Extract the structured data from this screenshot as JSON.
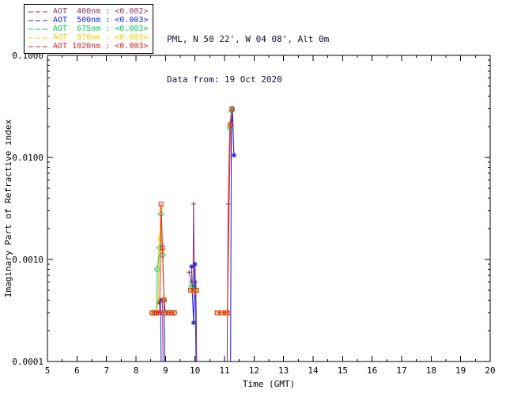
{
  "header": {
    "site_line": "PML, N 50 22', W 04 08', Alt 0m",
    "date_line": "Data from: 19 Oct 2020"
  },
  "chart_data": {
    "type": "line",
    "title": "",
    "xlabel": "Time (GMT)",
    "ylabel": "Imaginary Part of Refractive index",
    "xlim": [
      5,
      20
    ],
    "ylim": [
      0.0001,
      0.1
    ],
    "yscale": "log",
    "grid": false,
    "legend_position": "outside-top-left",
    "x_tick_labels": [
      "5",
      "6",
      "7",
      "8",
      "9",
      "10",
      "11",
      "12",
      "13",
      "14",
      "15",
      "16",
      "17",
      "18",
      "19",
      "20"
    ],
    "y_tick_labels": [
      "0.0001",
      "0.0010",
      "0.0100",
      "0.1000"
    ],
    "series": [
      {
        "id": "400nm",
        "name": "AOT 400nm",
        "legend_label": "AOT  400nm : <0.002>",
        "mean_value": "<0.002>",
        "color": "#993366",
        "marker": "plus",
        "segments": [
          [
            [
              8.9,
              0.0004
            ],
            [
              8.93,
              3e-05
            ]
          ],
          [
            [
              9.8,
              0.00075
            ],
            [
              9.87,
              0.0006
            ],
            [
              9.93,
              0.00055
            ],
            [
              9.95,
              0.0035
            ],
            [
              9.98,
              0.00055
            ],
            [
              10.03,
              0.0006
            ],
            [
              10.08,
              3e-05
            ]
          ],
          [
            [
              11.08,
              3e-05
            ],
            [
              11.12,
              0.0035
            ],
            [
              11.18,
              0.021
            ],
            [
              11.25,
              0.0295
            ],
            [
              11.32,
              0.0105
            ]
          ]
        ]
      },
      {
        "id": "500nm",
        "name": "AOT 500nm",
        "legend_label": "AOT  500nm : <0.003>",
        "mean_value": "<0.003>",
        "color": "#2222dd",
        "marker": "asterisk",
        "segments": [
          [
            [
              8.78,
              0.00038
            ],
            [
              8.83,
              0.0004
            ],
            [
              8.87,
              3e-05
            ]
          ],
          [
            [
              8.95,
              0.0004
            ],
            [
              9.0,
              3e-05
            ]
          ],
          [
            [
              9.88,
              0.00085
            ],
            [
              9.95,
              0.00024
            ],
            [
              10.0,
              0.0009
            ],
            [
              10.05,
              3e-05
            ]
          ],
          [
            [
              11.2,
              3e-05
            ],
            [
              11.23,
              0.0205
            ],
            [
              11.27,
              0.0295
            ],
            [
              11.32,
              0.0105
            ]
          ]
        ]
      },
      {
        "id": "675nm",
        "name": "AOT 675nm",
        "legend_label": "AOT  675nm : <0.003>",
        "mean_value": "<0.003>",
        "color": "#00cc55",
        "marker": "diamond",
        "segments": [
          [
            [
              8.55,
              0.0003
            ],
            [
              8.63,
              0.0003
            ],
            [
              8.7,
              0.0003
            ],
            [
              8.72,
              0.0008
            ],
            [
              8.8,
              0.0013
            ],
            [
              8.85,
              0.0028
            ],
            [
              8.9,
              0.0011
            ],
            [
              8.95,
              0.0004
            ],
            [
              9.0,
              0.0003
            ],
            [
              9.1,
              0.0003
            ],
            [
              9.2,
              0.0003
            ],
            [
              9.3,
              0.0003
            ]
          ],
          [
            [
              9.88,
              0.00055
            ],
            [
              9.95,
              0.0005
            ],
            [
              10.03,
              0.0005
            ]
          ],
          [
            [
              11.18,
              0.0195
            ],
            [
              11.24,
              0.0285
            ]
          ]
        ]
      },
      {
        "id": "870nm",
        "name": "AOT 870nm",
        "legend_label": "AOT  870nm : <0.003>",
        "mean_value": "<0.003>",
        "color": "#f0d000",
        "marker": "x",
        "segments": [
          [
            [
              8.55,
              0.0003
            ],
            [
              8.63,
              0.0003
            ],
            [
              8.7,
              0.0003
            ],
            [
              8.75,
              0.0004
            ],
            [
              8.8,
              0.0016
            ],
            [
              8.85,
              0.0032
            ],
            [
              8.9,
              0.0012
            ],
            [
              8.95,
              0.0004
            ],
            [
              9.0,
              0.0003
            ],
            [
              9.1,
              0.0003
            ],
            [
              9.2,
              0.0003
            ],
            [
              9.3,
              0.0003
            ]
          ],
          [
            [
              9.85,
              0.0005
            ],
            [
              9.95,
              0.00048
            ],
            [
              10.05,
              0.0005
            ]
          ],
          [
            [
              10.75,
              0.0003
            ],
            [
              10.9,
              0.0003
            ],
            [
              11.05,
              0.0003
            ],
            [
              11.1,
              0.0003
            ],
            [
              11.2,
              0.0205
            ],
            [
              11.25,
              0.0295
            ]
          ]
        ]
      },
      {
        "id": "1020nm",
        "name": "AOT 1020nm",
        "legend_label": "AOT 1020nm : <0.003>",
        "mean_value": "<0.003>",
        "color": "#ee2222",
        "marker": "square",
        "segments": [
          [
            [
              8.55,
              0.0003
            ],
            [
              8.63,
              0.0003
            ],
            [
              8.7,
              0.0003
            ],
            [
              8.75,
              0.0003
            ],
            [
              8.8,
              0.0003
            ],
            [
              8.85,
              0.0035
            ],
            [
              8.9,
              0.0013
            ],
            [
              8.95,
              0.0004
            ],
            [
              9.0,
              0.0003
            ],
            [
              9.1,
              0.0003
            ],
            [
              9.2,
              0.0003
            ],
            [
              9.3,
              0.0003
            ]
          ],
          [
            [
              9.85,
              0.0005
            ],
            [
              9.95,
              0.0005
            ],
            [
              10.05,
              0.0005
            ]
          ],
          [
            [
              10.75,
              0.0003
            ],
            [
              10.9,
              0.0003
            ],
            [
              11.05,
              0.0003
            ],
            [
              11.1,
              0.0003
            ],
            [
              11.2,
              0.021
            ],
            [
              11.25,
              0.03
            ]
          ]
        ]
      }
    ]
  }
}
